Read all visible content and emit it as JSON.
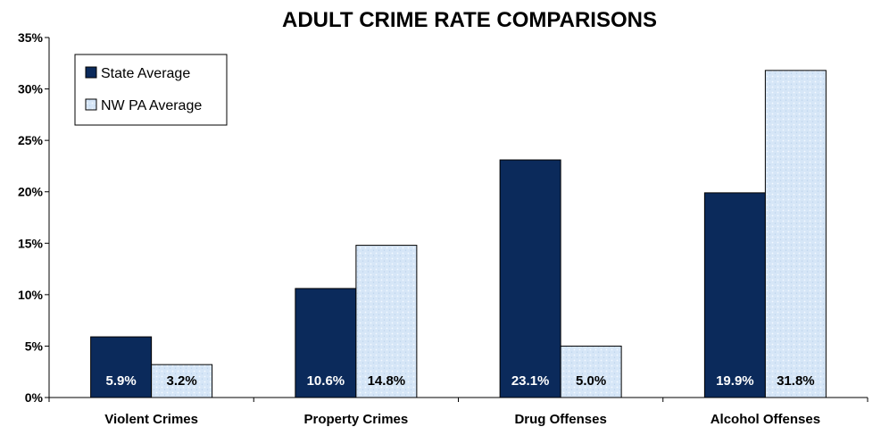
{
  "chart_data": {
    "type": "bar",
    "title": "ADULT CRIME RATE COMPARISONS",
    "xlabel": "",
    "ylabel": "",
    "categories": [
      "Violent Crimes",
      "Property Crimes",
      "Drug Offenses",
      "Alcohol Offenses"
    ],
    "series": [
      {
        "name": "State Average",
        "values": [
          5.9,
          10.6,
          23.1,
          19.9
        ],
        "labels": [
          "5.9%",
          "10.6%",
          "23.1%",
          "19.9%"
        ],
        "color": "#0b2a5b"
      },
      {
        "name": "NW PA Average",
        "values": [
          3.2,
          14.8,
          5.0,
          31.8
        ],
        "labels": [
          "3.2%",
          "14.8%",
          "5.0%",
          "31.8%"
        ],
        "color": "#d6e6f7"
      }
    ],
    "ylim": [
      0,
      35
    ],
    "yticks": [
      "0%",
      "5%",
      "10%",
      "15%",
      "20%",
      "25%",
      "30%",
      "35%"
    ],
    "ytick_values": [
      0,
      5,
      10,
      15,
      20,
      25,
      30,
      35
    ],
    "grid": false,
    "legend": "top-left"
  }
}
